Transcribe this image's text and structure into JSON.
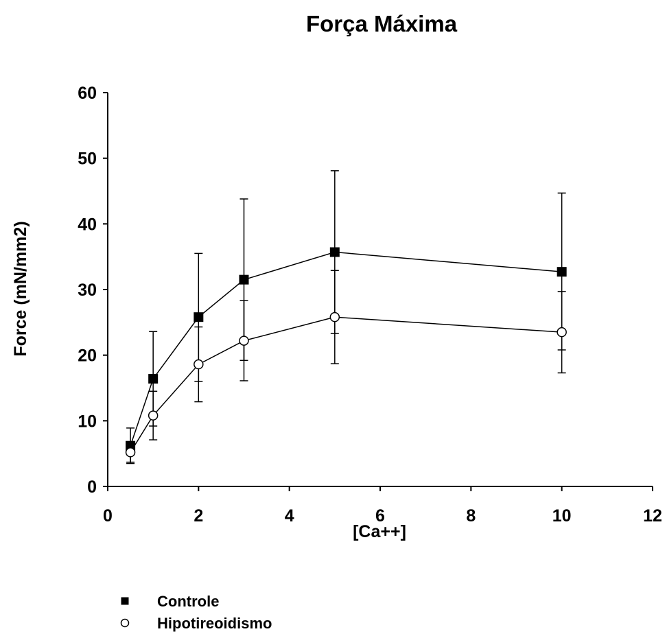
{
  "chart_data": {
    "type": "line",
    "title": "Força Máxima",
    "xlabel": "[Ca++]",
    "ylabel": "Force (mN/mm2)",
    "xlim": [
      0,
      12
    ],
    "ylim": [
      0,
      60
    ],
    "xticks": [
      0,
      2,
      4,
      6,
      8,
      10,
      12
    ],
    "yticks": [
      0,
      10,
      20,
      30,
      40,
      50,
      60
    ],
    "x": [
      0.5,
      1,
      2,
      3,
      5,
      10
    ],
    "grid": false,
    "legend_position": "bottom-left",
    "series": [
      {
        "name": "Controle",
        "marker": "filled-square",
        "color": "#000000",
        "values": [
          6.2,
          16.4,
          25.8,
          31.5,
          35.7,
          32.7
        ],
        "err_low": [
          3.5,
          9.2,
          16.0,
          19.2,
          23.3,
          20.8
        ],
        "err_high": [
          8.9,
          23.6,
          35.5,
          43.8,
          48.1,
          44.7
        ]
      },
      {
        "name": "Hipotireoidismo",
        "marker": "open-circle",
        "color": "#000000",
        "values": [
          5.2,
          10.8,
          18.6,
          22.2,
          25.8,
          23.5
        ],
        "err_low": [
          3.7,
          7.1,
          12.9,
          16.1,
          18.7,
          17.3
        ],
        "err_high": [
          6.7,
          14.5,
          24.3,
          28.3,
          32.9,
          29.7
        ]
      }
    ]
  }
}
